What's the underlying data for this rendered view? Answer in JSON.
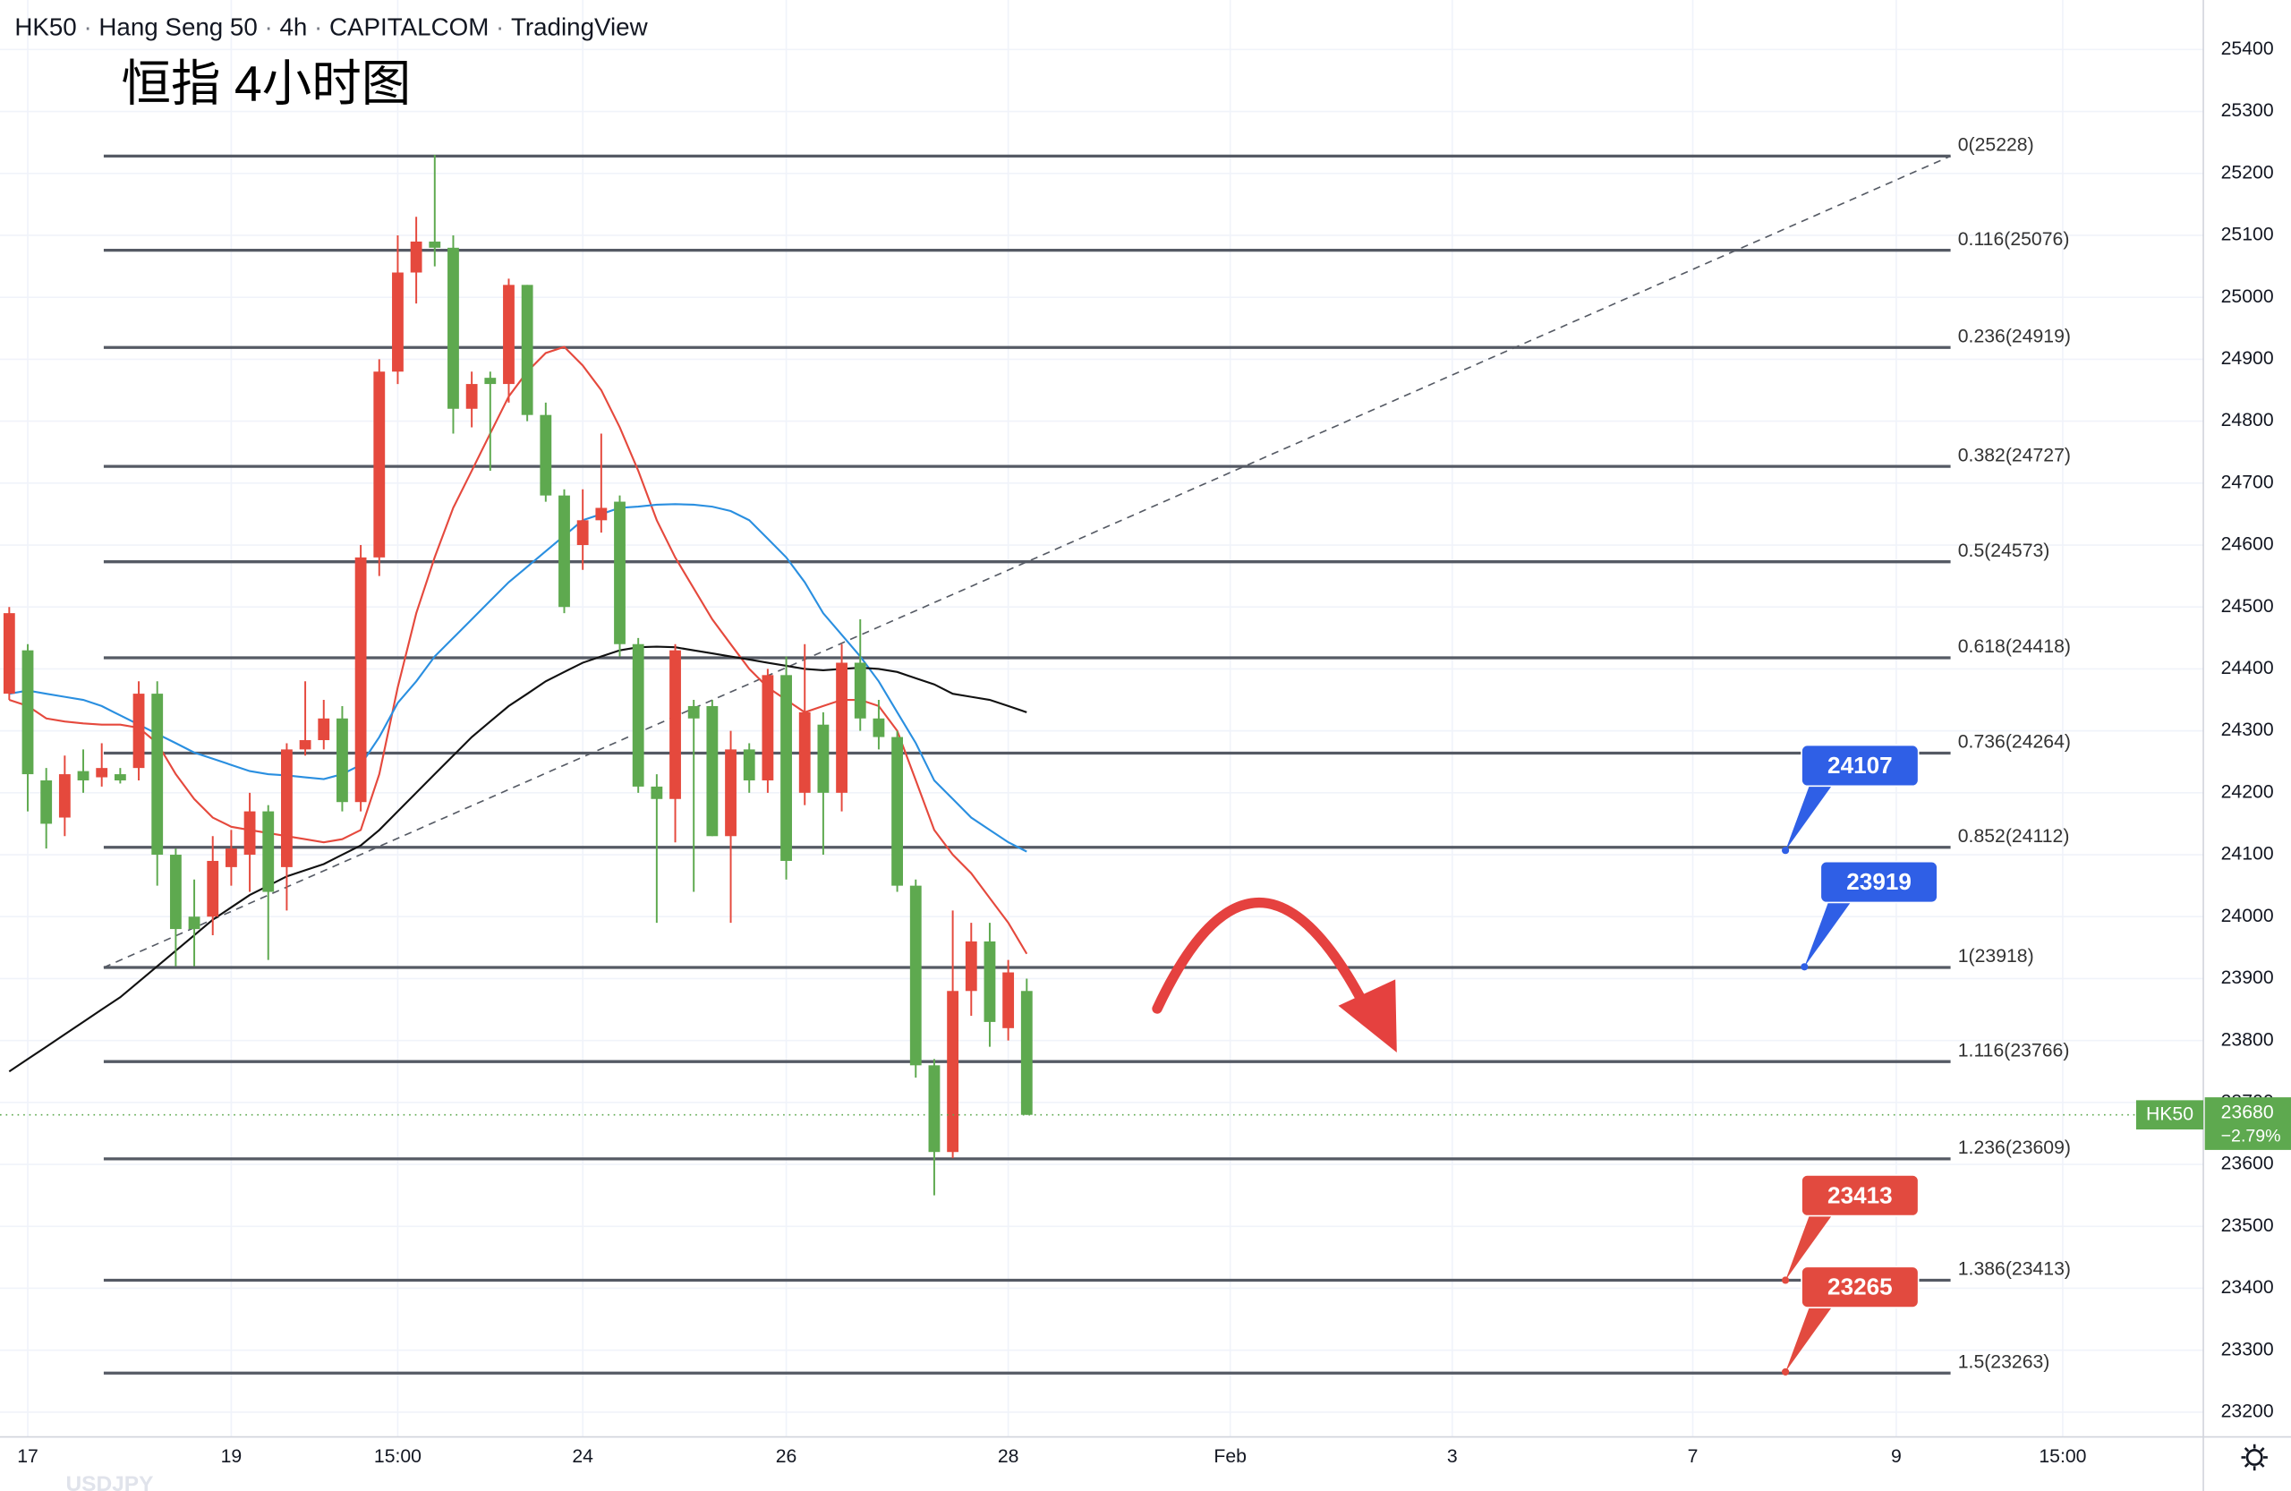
{
  "chart_data": {
    "type": "candlestick",
    "header": [
      "HK50",
      "Hang Seng 50",
      "4h",
      "CAPITALCOM",
      "TradingView"
    ],
    "title": "恒指 4小时图",
    "watermark": "USDJPY",
    "up_color": "#e5493d",
    "down_color": "#5ea94f",
    "x": [
      0,
      1,
      2,
      3,
      4,
      5,
      6,
      7,
      8,
      9,
      10,
      11,
      12,
      13,
      14,
      15,
      16,
      17,
      18,
      19,
      20,
      21,
      22,
      23,
      24,
      25,
      26,
      27,
      28,
      29,
      30,
      31,
      32,
      33,
      34,
      35,
      36,
      37,
      38,
      39,
      40,
      41,
      42,
      43,
      44,
      45,
      46,
      47,
      48,
      49,
      50,
      51,
      52,
      53,
      54,
      55
    ],
    "open": [
      24360,
      24430,
      24220,
      24160,
      24235,
      24225,
      24230,
      24240,
      24360,
      24100,
      24000,
      24000,
      24080,
      24100,
      24170,
      24080,
      24270,
      24285,
      24320,
      24185,
      24580,
      24880,
      25040,
      25090,
      25080,
      24820,
      24870,
      24860,
      25020,
      24810,
      24680,
      24600,
      24640,
      24670,
      24440,
      24210,
      24190,
      24340,
      24340,
      24130,
      24270,
      24220,
      24390,
      24200,
      24310,
      24200,
      24410,
      24320,
      24290,
      24050,
      23760,
      23620,
      23880,
      23960,
      23820,
      23880
    ],
    "high": [
      24500,
      24440,
      24240,
      24260,
      24270,
      24280,
      24240,
      24380,
      24380,
      24110,
      24060,
      24130,
      24140,
      24200,
      24180,
      24280,
      24380,
      24350,
      24340,
      24600,
      24900,
      25100,
      25130,
      25230,
      25100,
      24880,
      24880,
      25030,
      25020,
      24830,
      24690,
      24690,
      24780,
      24680,
      24450,
      24230,
      24440,
      24350,
      24350,
      24300,
      24280,
      24400,
      24420,
      24440,
      24330,
      24440,
      24480,
      24350,
      24300,
      24060,
      23770,
      24010,
      23990,
      23990,
      23930,
      23900
    ],
    "low": [
      24350,
      24170,
      24110,
      24130,
      24200,
      24210,
      24215,
      24220,
      24050,
      23920,
      23920,
      23970,
      24050,
      24040,
      23930,
      24010,
      24260,
      24270,
      24170,
      24170,
      24550,
      24860,
      24990,
      25050,
      24780,
      24790,
      24720,
      24830,
      24800,
      24670,
      24490,
      24560,
      24620,
      24420,
      24200,
      23990,
      24120,
      24040,
      24130,
      23990,
      24200,
      24200,
      24060,
      24180,
      24100,
      24170,
      24300,
      24270,
      24040,
      23740,
      23550,
      23610,
      23840,
      23790,
      23800,
      23680
    ],
    "close": [
      24490,
      24230,
      24150,
      24230,
      24220,
      24240,
      24220,
      24360,
      24100,
      23980,
      23980,
      24090,
      24110,
      24170,
      24040,
      24270,
      24285,
      24320,
      24185,
      24580,
      24880,
      25040,
      25090,
      25080,
      24820,
      24860,
      24860,
      25020,
      24810,
      24680,
      24500,
      24640,
      24660,
      24440,
      24210,
      24190,
      24430,
      24320,
      24130,
      24270,
      24220,
      24390,
      24090,
      24330,
      24200,
      24410,
      24320,
      24290,
      24050,
      23760,
      23620,
      23880,
      23960,
      23830,
      23910,
      23680
    ],
    "lines": [
      {
        "color": "#e5493d",
        "values": [
          24350,
          24340,
          24320,
          24315,
          24312,
          24310,
          24310,
          24305,
          24280,
          24230,
          24190,
          24160,
          24145,
          24140,
          24135,
          24130,
          24125,
          24120,
          24125,
          24140,
          24230,
          24370,
          24490,
          24580,
          24660,
          24720,
          24780,
          24840,
          24880,
          24910,
          24920,
          24890,
          24850,
          24790,
          24720,
          24640,
          24580,
          24530,
          24480,
          24440,
          24400,
          24370,
          24350,
          24330,
          24340,
          24350,
          24350,
          24340,
          24300,
          24220,
          24140,
          24100,
          24070,
          24030,
          23990,
          23940
        ]
      },
      {
        "color": "#2a8fe0",
        "values": [
          24360,
          24365,
          24360,
          24355,
          24350,
          24340,
          24325,
          24310,
          24295,
          24280,
          24265,
          24255,
          24245,
          24235,
          24230,
          24228,
          24225,
          24222,
          24230,
          24245,
          24290,
          24345,
          24380,
          24420,
          24450,
          24480,
          24510,
          24540,
          24565,
          24590,
          24615,
          24640,
          24650,
          24660,
          24662,
          24665,
          24666,
          24665,
          24662,
          24655,
          24640,
          24610,
          24580,
          24540,
          24490,
          24455,
          24420,
          24380,
          24330,
          24280,
          24220,
          24190,
          24160,
          24140,
          24120,
          24105
        ]
      },
      {
        "color": "#111111",
        "values": [
          23750,
          23770,
          23790,
          23810,
          23830,
          23850,
          23870,
          23895,
          23920,
          23945,
          23970,
          23995,
          24015,
          24035,
          24050,
          24065,
          24075,
          24085,
          24100,
          24115,
          24140,
          24170,
          24200,
          24230,
          24260,
          24290,
          24315,
          24340,
          24360,
          24380,
          24395,
          24410,
          24420,
          24430,
          24435,
          24436,
          24435,
          24430,
          24425,
          24420,
          24415,
          24410,
          24405,
          24400,
          24398,
          24400,
          24402,
          24400,
          24395,
          24385,
          24375,
          24360,
          24355,
          24350,
          24340,
          24330
        ]
      }
    ],
    "fib_levels": [
      {
        "label": "0(25228)",
        "value": 25228
      },
      {
        "label": "0.116(25076)",
        "value": 25076
      },
      {
        "label": "0.236(24919)",
        "value": 24919
      },
      {
        "label": "0.382(24727)",
        "value": 24727
      },
      {
        "label": "0.5(24573)",
        "value": 24573
      },
      {
        "label": "0.618(24418)",
        "value": 24418
      },
      {
        "label": "0.736(24264)",
        "value": 24264
      },
      {
        "label": "0.852(24112)",
        "value": 24112
      },
      {
        "label": "1(23918)",
        "value": 23918
      },
      {
        "label": "1.116(23766)",
        "value": 23766
      },
      {
        "label": "1.236(23609)",
        "value": 23609
      },
      {
        "label": "1.386(23413)",
        "value": 23413
      },
      {
        "label": "1.5(23263)",
        "value": 23263
      }
    ],
    "callouts": [
      {
        "value": 24107,
        "color": "#2f5fe6"
      },
      {
        "value": 23919,
        "color": "#2f5fe6"
      },
      {
        "value": 23413,
        "color": "#e24a3f"
      },
      {
        "value": 23265,
        "color": "#e24a3f"
      }
    ],
    "last_price": {
      "symbol": "HK50",
      "value": 23680,
      "change": {
        "value": -2.79,
        "label": "−2.79%"
      },
      "color": "#5ea94f"
    },
    "ylim": [
      23160,
      25480
    ],
    "yticks": [
      23200,
      23300,
      23400,
      23500,
      23600,
      23700,
      23800,
      23900,
      24000,
      24100,
      24200,
      24300,
      24400,
      24500,
      24600,
      24700,
      24800,
      24900,
      25000,
      25100,
      25200,
      25300,
      25400
    ],
    "xlim": [
      -0.5,
      118.6
    ],
    "xticks": [
      {
        "value": 1,
        "label": "17"
      },
      {
        "value": 12,
        "label": "19"
      },
      {
        "value": 21,
        "label": "15:00"
      },
      {
        "value": 31,
        "label": "24"
      },
      {
        "value": 42,
        "label": "26"
      },
      {
        "value": 54,
        "label": "28"
      },
      {
        "value": 66,
        "label": "Feb"
      },
      {
        "value": 78,
        "label": "3"
      },
      {
        "value": 91,
        "label": "7"
      },
      {
        "value": 102,
        "label": "9"
      },
      {
        "value": 111,
        "label": "15:00"
      }
    ],
    "grid": true
  }
}
